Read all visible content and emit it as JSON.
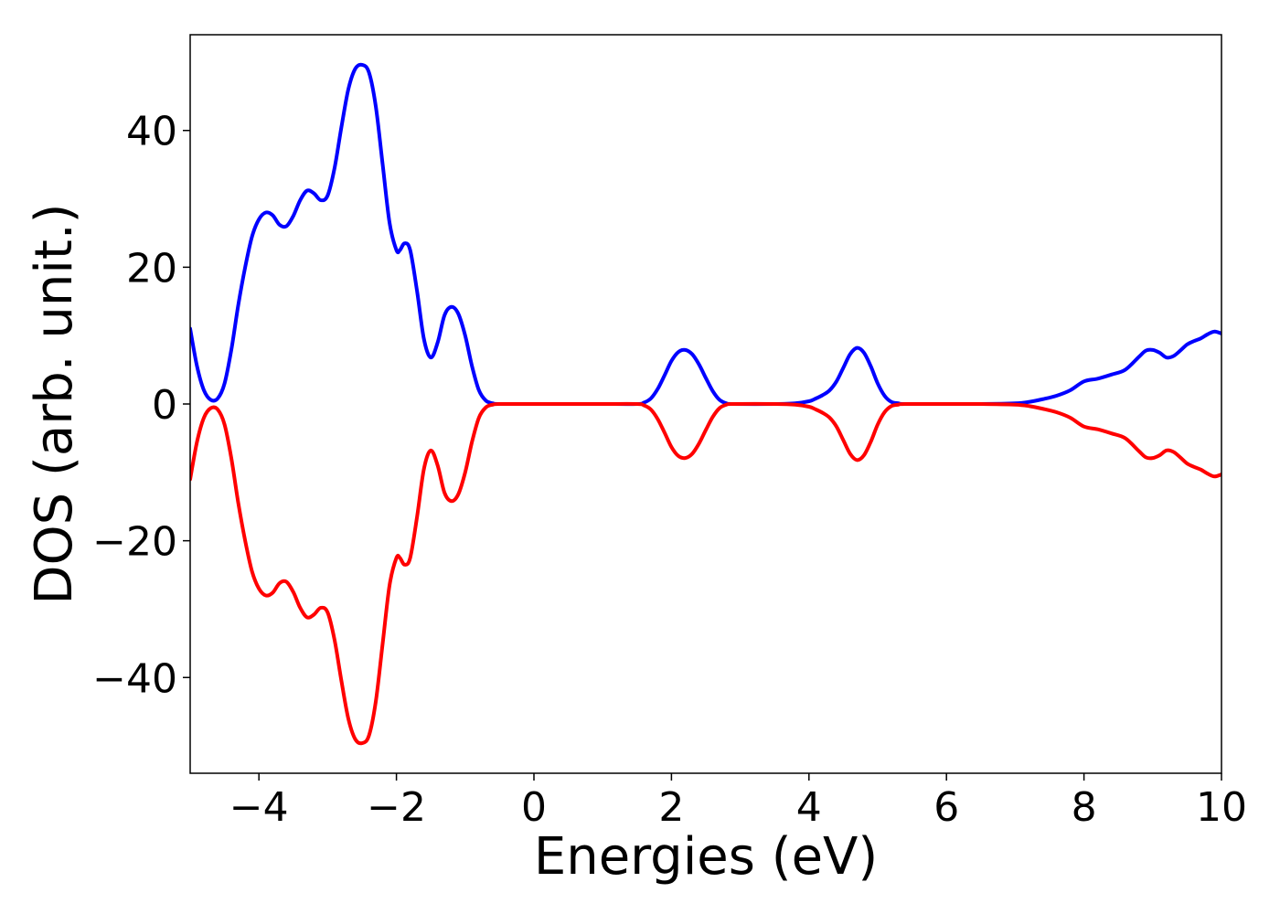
{
  "chart_data": {
    "type": "line",
    "title": "",
    "xlabel": "Energies (eV)",
    "ylabel": "DOS (arb. unit.)",
    "xlim": [
      -5,
      10
    ],
    "ylim": [
      -54,
      54
    ],
    "x_ticks": [
      -4,
      -2,
      0,
      2,
      4,
      6,
      8,
      10
    ],
    "x_tick_labels": [
      "−4",
      "−2",
      "0",
      "2",
      "4",
      "6",
      "8",
      "10"
    ],
    "y_ticks": [
      -40,
      -20,
      0,
      20,
      40
    ],
    "y_tick_labels": [
      "−40",
      "−20",
      "0",
      "20",
      "40"
    ],
    "grid": false,
    "legend": "none",
    "series": [
      {
        "color": "#0000ff",
        "points": [
          [
            -5.0,
            11.0
          ],
          [
            -4.9,
            5.5
          ],
          [
            -4.8,
            2.0
          ],
          [
            -4.7,
            0.6
          ],
          [
            -4.6,
            0.8
          ],
          [
            -4.5,
            3.0
          ],
          [
            -4.4,
            8.0
          ],
          [
            -4.3,
            14.5
          ],
          [
            -4.2,
            20.0
          ],
          [
            -4.1,
            24.5
          ],
          [
            -4.0,
            27.0
          ],
          [
            -3.9,
            28.0
          ],
          [
            -3.8,
            27.6
          ],
          [
            -3.7,
            26.2
          ],
          [
            -3.6,
            26.0
          ],
          [
            -3.5,
            27.5
          ],
          [
            -3.4,
            29.8
          ],
          [
            -3.3,
            31.2
          ],
          [
            -3.2,
            30.8
          ],
          [
            -3.1,
            29.8
          ],
          [
            -3.0,
            30.5
          ],
          [
            -2.9,
            34.5
          ],
          [
            -2.8,
            40.5
          ],
          [
            -2.7,
            46.0
          ],
          [
            -2.6,
            49.0
          ],
          [
            -2.5,
            49.6
          ],
          [
            -2.4,
            48.5
          ],
          [
            -2.3,
            43.5
          ],
          [
            -2.2,
            35.0
          ],
          [
            -2.1,
            26.5
          ],
          [
            -2.0,
            22.5
          ],
          [
            -1.95,
            22.5
          ],
          [
            -1.88,
            23.5
          ],
          [
            -1.8,
            22.5
          ],
          [
            -1.7,
            16.5
          ],
          [
            -1.6,
            9.5
          ],
          [
            -1.5,
            6.8
          ],
          [
            -1.4,
            9.0
          ],
          [
            -1.3,
            13.0
          ],
          [
            -1.2,
            14.2
          ],
          [
            -1.1,
            13.2
          ],
          [
            -1.0,
            10.0
          ],
          [
            -0.9,
            5.5
          ],
          [
            -0.8,
            2.0
          ],
          [
            -0.7,
            0.5
          ],
          [
            -0.6,
            0.1
          ],
          [
            -0.5,
            0.0
          ],
          [
            0.0,
            0.0
          ],
          [
            0.5,
            0.0
          ],
          [
            1.0,
            0.0
          ],
          [
            1.5,
            0.0
          ],
          [
            1.6,
            0.2
          ],
          [
            1.7,
            0.8
          ],
          [
            1.8,
            2.2
          ],
          [
            1.9,
            4.2
          ],
          [
            2.0,
            6.3
          ],
          [
            2.1,
            7.6
          ],
          [
            2.2,
            7.9
          ],
          [
            2.3,
            7.3
          ],
          [
            2.4,
            5.8
          ],
          [
            2.5,
            3.8
          ],
          [
            2.6,
            1.9
          ],
          [
            2.7,
            0.6
          ],
          [
            2.8,
            0.1
          ],
          [
            2.9,
            0.0
          ],
          [
            3.5,
            0.0
          ],
          [
            3.8,
            0.1
          ],
          [
            4.0,
            0.4
          ],
          [
            4.1,
            0.8
          ],
          [
            4.2,
            1.3
          ],
          [
            4.3,
            2.0
          ],
          [
            4.4,
            3.3
          ],
          [
            4.5,
            5.3
          ],
          [
            4.6,
            7.3
          ],
          [
            4.7,
            8.2
          ],
          [
            4.8,
            7.5
          ],
          [
            4.9,
            5.5
          ],
          [
            5.0,
            3.0
          ],
          [
            5.1,
            1.2
          ],
          [
            5.2,
            0.3
          ],
          [
            5.3,
            0.1
          ],
          [
            5.4,
            0.0
          ],
          [
            6.0,
            0.0
          ],
          [
            6.5,
            0.0
          ],
          [
            7.0,
            0.1
          ],
          [
            7.2,
            0.3
          ],
          [
            7.4,
            0.7
          ],
          [
            7.6,
            1.2
          ],
          [
            7.8,
            2.0
          ],
          [
            8.0,
            3.3
          ],
          [
            8.2,
            3.7
          ],
          [
            8.4,
            4.3
          ],
          [
            8.6,
            5.0
          ],
          [
            8.8,
            6.9
          ],
          [
            8.9,
            7.8
          ],
          [
            9.0,
            7.9
          ],
          [
            9.1,
            7.5
          ],
          [
            9.2,
            6.8
          ],
          [
            9.3,
            7.0
          ],
          [
            9.4,
            7.8
          ],
          [
            9.5,
            8.7
          ],
          [
            9.6,
            9.2
          ],
          [
            9.7,
            9.6
          ],
          [
            9.8,
            10.2
          ],
          [
            9.9,
            10.6
          ],
          [
            10.0,
            10.3
          ]
        ]
      },
      {
        "color": "#ff0000",
        "points": [
          [
            -5.0,
            -11.0
          ],
          [
            -4.9,
            -5.5
          ],
          [
            -4.8,
            -2.0
          ],
          [
            -4.7,
            -0.6
          ],
          [
            -4.6,
            -0.8
          ],
          [
            -4.5,
            -3.0
          ],
          [
            -4.4,
            -8.0
          ],
          [
            -4.3,
            -14.5
          ],
          [
            -4.2,
            -20.0
          ],
          [
            -4.1,
            -24.5
          ],
          [
            -4.0,
            -27.0
          ],
          [
            -3.9,
            -28.0
          ],
          [
            -3.8,
            -27.6
          ],
          [
            -3.7,
            -26.2
          ],
          [
            -3.6,
            -26.0
          ],
          [
            -3.5,
            -27.5
          ],
          [
            -3.4,
            -29.8
          ],
          [
            -3.3,
            -31.2
          ],
          [
            -3.2,
            -30.8
          ],
          [
            -3.1,
            -29.8
          ],
          [
            -3.0,
            -30.5
          ],
          [
            -2.9,
            -34.5
          ],
          [
            -2.8,
            -40.5
          ],
          [
            -2.7,
            -46.0
          ],
          [
            -2.6,
            -49.0
          ],
          [
            -2.5,
            -49.6
          ],
          [
            -2.4,
            -48.5
          ],
          [
            -2.3,
            -43.5
          ],
          [
            -2.2,
            -35.0
          ],
          [
            -2.1,
            -26.5
          ],
          [
            -2.0,
            -22.5
          ],
          [
            -1.95,
            -22.5
          ],
          [
            -1.88,
            -23.5
          ],
          [
            -1.8,
            -22.5
          ],
          [
            -1.7,
            -16.5
          ],
          [
            -1.6,
            -9.5
          ],
          [
            -1.5,
            -6.8
          ],
          [
            -1.4,
            -9.0
          ],
          [
            -1.3,
            -13.0
          ],
          [
            -1.2,
            -14.2
          ],
          [
            -1.1,
            -13.2
          ],
          [
            -1.0,
            -10.0
          ],
          [
            -0.9,
            -5.5
          ],
          [
            -0.8,
            -2.0
          ],
          [
            -0.7,
            -0.5
          ],
          [
            -0.6,
            -0.1
          ],
          [
            -0.5,
            0.0
          ],
          [
            0.0,
            0.0
          ],
          [
            0.5,
            0.0
          ],
          [
            1.0,
            0.0
          ],
          [
            1.5,
            0.0
          ],
          [
            1.6,
            -0.2
          ],
          [
            1.7,
            -0.8
          ],
          [
            1.8,
            -2.2
          ],
          [
            1.9,
            -4.2
          ],
          [
            2.0,
            -6.3
          ],
          [
            2.1,
            -7.6
          ],
          [
            2.2,
            -7.9
          ],
          [
            2.3,
            -7.3
          ],
          [
            2.4,
            -5.8
          ],
          [
            2.5,
            -3.8
          ],
          [
            2.6,
            -1.9
          ],
          [
            2.7,
            -0.6
          ],
          [
            2.8,
            -0.1
          ],
          [
            2.9,
            0.0
          ],
          [
            3.5,
            0.0
          ],
          [
            3.8,
            -0.1
          ],
          [
            4.0,
            -0.4
          ],
          [
            4.1,
            -0.8
          ],
          [
            4.2,
            -1.3
          ],
          [
            4.3,
            -2.0
          ],
          [
            4.4,
            -3.3
          ],
          [
            4.5,
            -5.3
          ],
          [
            4.6,
            -7.3
          ],
          [
            4.7,
            -8.2
          ],
          [
            4.8,
            -7.5
          ],
          [
            4.9,
            -5.5
          ],
          [
            5.0,
            -3.0
          ],
          [
            5.1,
            -1.2
          ],
          [
            5.2,
            -0.3
          ],
          [
            5.3,
            -0.1
          ],
          [
            5.4,
            0.0
          ],
          [
            6.0,
            0.0
          ],
          [
            6.5,
            0.0
          ],
          [
            7.0,
            -0.1
          ],
          [
            7.2,
            -0.3
          ],
          [
            7.4,
            -0.7
          ],
          [
            7.6,
            -1.2
          ],
          [
            7.8,
            -2.0
          ],
          [
            8.0,
            -3.3
          ],
          [
            8.2,
            -3.7
          ],
          [
            8.4,
            -4.3
          ],
          [
            8.6,
            -5.0
          ],
          [
            8.8,
            -6.9
          ],
          [
            8.9,
            -7.8
          ],
          [
            9.0,
            -7.9
          ],
          [
            9.1,
            -7.5
          ],
          [
            9.2,
            -6.8
          ],
          [
            9.3,
            -7.0
          ],
          [
            9.4,
            -7.8
          ],
          [
            9.5,
            -8.7
          ],
          [
            9.6,
            -9.2
          ],
          [
            9.7,
            -9.6
          ],
          [
            9.8,
            -10.2
          ],
          [
            9.9,
            -10.6
          ],
          [
            10.0,
            -10.3
          ]
        ]
      }
    ]
  }
}
